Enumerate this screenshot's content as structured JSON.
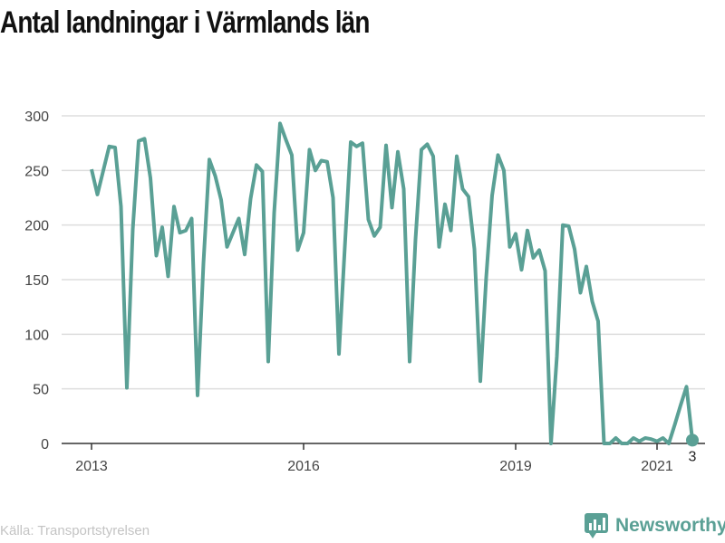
{
  "title": "Antal landningar i Värmlands län",
  "source": "Källa: Transportstyrelsen",
  "brand": {
    "name": "Newsworthy",
    "icon": "newsworthy-logo-icon"
  },
  "colors": {
    "line": "#5aa095",
    "grid": "#dddddd",
    "axis": "#333333",
    "label": "#444444",
    "source": "#c4c4c4"
  },
  "chart_data": {
    "type": "line",
    "title": "Antal landningar i Värmlands län",
    "xlabel": "",
    "ylabel": "",
    "ylim": [
      0,
      300
    ],
    "yticks": [
      0,
      50,
      100,
      150,
      200,
      250,
      300
    ],
    "xticks": [
      {
        "label": "2013",
        "date": "2013-01"
      },
      {
        "label": "2016",
        "date": "2016-01"
      },
      {
        "label": "2019",
        "date": "2019-01"
      },
      {
        "label": "2021",
        "date": "2021-01"
      }
    ],
    "grid": true,
    "series": [
      {
        "name": "",
        "start": "2013-01",
        "frequency": "monthly",
        "values": [
          251,
          228,
          250,
          272,
          271,
          217,
          51,
          196,
          277,
          279,
          243,
          172,
          198,
          153,
          217,
          193,
          195,
          206,
          44,
          165,
          260,
          245,
          223,
          180,
          193,
          206,
          173,
          224,
          255,
          249,
          75,
          211,
          293,
          278,
          264,
          177,
          193,
          269,
          250,
          259,
          258,
          225,
          82,
          180,
          276,
          272,
          275,
          205,
          190,
          198,
          273,
          216,
          267,
          233,
          75,
          187,
          269,
          274,
          263,
          180,
          219,
          195,
          263,
          233,
          226,
          178,
          57,
          152,
          227,
          264,
          250,
          180,
          192,
          159,
          195,
          170,
          177,
          158,
          0,
          80,
          200,
          199,
          178,
          138,
          162,
          130,
          112,
          0,
          0,
          5,
          0,
          0,
          5,
          2,
          5,
          4,
          2,
          5,
          0,
          17,
          35,
          52,
          3
        ]
      }
    ],
    "last_point_label": "3"
  }
}
